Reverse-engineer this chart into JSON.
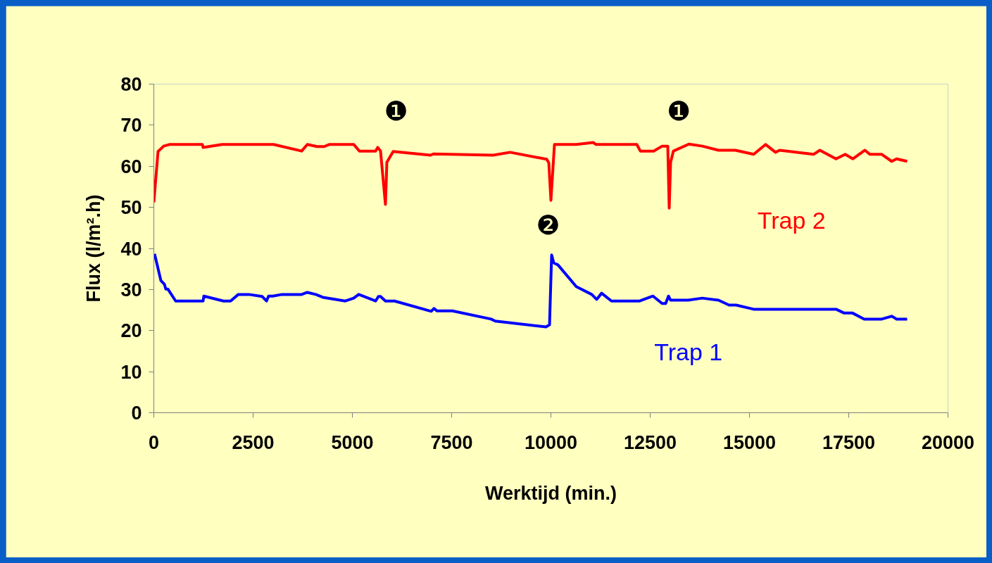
{
  "chart_data": {
    "type": "line",
    "xlabel": "Werktijd (min.)",
    "ylabel": "Flux (l/m².h)",
    "xlim": [
      0,
      20000
    ],
    "xticks": [
      0,
      2500,
      5000,
      7500,
      10000,
      12500,
      15000,
      17500,
      20000
    ],
    "ylim": [
      0,
      80
    ],
    "yticks": [
      0,
      10,
      20,
      30,
      40,
      50,
      60,
      70,
      80
    ],
    "grid": false,
    "marker": "none",
    "line_style": "solid",
    "series": [
      {
        "name": "Trap 2",
        "color": "#ff0000",
        "x": [
          0,
          106,
          248,
          390,
          1223,
          1241,
          1720,
          3014,
          3723,
          3865,
          4113,
          4290,
          4415,
          5035,
          5177,
          5585,
          5638,
          5709,
          5833,
          5869,
          6028,
          6968,
          7039,
          8546,
          8972,
          9894,
          9947,
          10000,
          10089,
          10638,
          11064,
          11135,
          12163,
          12252,
          12589,
          12801,
          12943,
          12979,
          13014,
          13085,
          13475,
          13812,
          14220,
          14645,
          15106,
          15408,
          15656,
          15762,
          16613,
          16773,
          17181,
          17411,
          17606,
          17908,
          18032,
          18333,
          18582,
          18706,
          18972
        ],
        "values": [
          51.2,
          63.6,
          64.9,
          65.3,
          65.3,
          64.6,
          65.3,
          65.3,
          63.7,
          65.3,
          64.8,
          64.8,
          65.3,
          65.3,
          63.7,
          63.7,
          64.6,
          63.7,
          50.7,
          61,
          63.6,
          62.7,
          63.0,
          62.7,
          63.4,
          61.7,
          60.8,
          51.7,
          65.3,
          65.3,
          65.8,
          65.3,
          65.3,
          63.7,
          63.7,
          64.9,
          64.9,
          49.8,
          61,
          63.7,
          65.4,
          64.9,
          63.9,
          63.9,
          62.9,
          65.3,
          63.4,
          63.9,
          62.9,
          63.9,
          61.8,
          62.9,
          61.8,
          63.9,
          62.9,
          62.9,
          61.2,
          61.8,
          61.2
        ]
      },
      {
        "name": "Trap 1",
        "color": "#0000ff",
        "x": [
          18,
          177,
          266,
          301,
          355,
          550,
          1241,
          1259,
          1755,
          1933,
          2128,
          2394,
          2730,
          2837,
          2890,
          2996,
          3227,
          3723,
          3865,
          4078,
          4255,
          4823,
          5035,
          5160,
          5585,
          5656,
          5709,
          5833,
          6064,
          6986,
          7057,
          7128,
          7518,
          8493,
          8599,
          9876,
          9965,
          10018,
          10071,
          10177,
          10638,
          11028,
          11152,
          11277,
          11525,
          12234,
          12571,
          12801,
          12890,
          12961,
          13014,
          13457,
          13812,
          14220,
          14486,
          14663,
          15106,
          17181,
          17376,
          17589,
          17890,
          18333,
          18582,
          18706,
          18972
        ],
        "values": [
          38.7,
          32.2,
          31.3,
          30.1,
          30.1,
          27.2,
          27.2,
          28.4,
          27.2,
          27.2,
          28.8,
          28.8,
          28.3,
          27.2,
          28.4,
          28.4,
          28.8,
          28.8,
          29.3,
          28.8,
          28.1,
          27.2,
          27.9,
          28.8,
          27.2,
          28.3,
          28.3,
          27.2,
          27.2,
          24.7,
          25.4,
          24.8,
          24.8,
          22.8,
          22.3,
          20.9,
          21.4,
          38.4,
          36.5,
          36.0,
          30.7,
          28.8,
          27.6,
          29.1,
          27.2,
          27.2,
          28.4,
          26.6,
          26.6,
          28.4,
          27.4,
          27.4,
          27.9,
          27.4,
          26.2,
          26.2,
          25.2,
          25.2,
          24.3,
          24.3,
          22.8,
          22.8,
          23.5,
          22.8,
          22.8
        ]
      }
    ],
    "annotations": [
      "❶",
      "❶",
      "❷"
    ]
  }
}
